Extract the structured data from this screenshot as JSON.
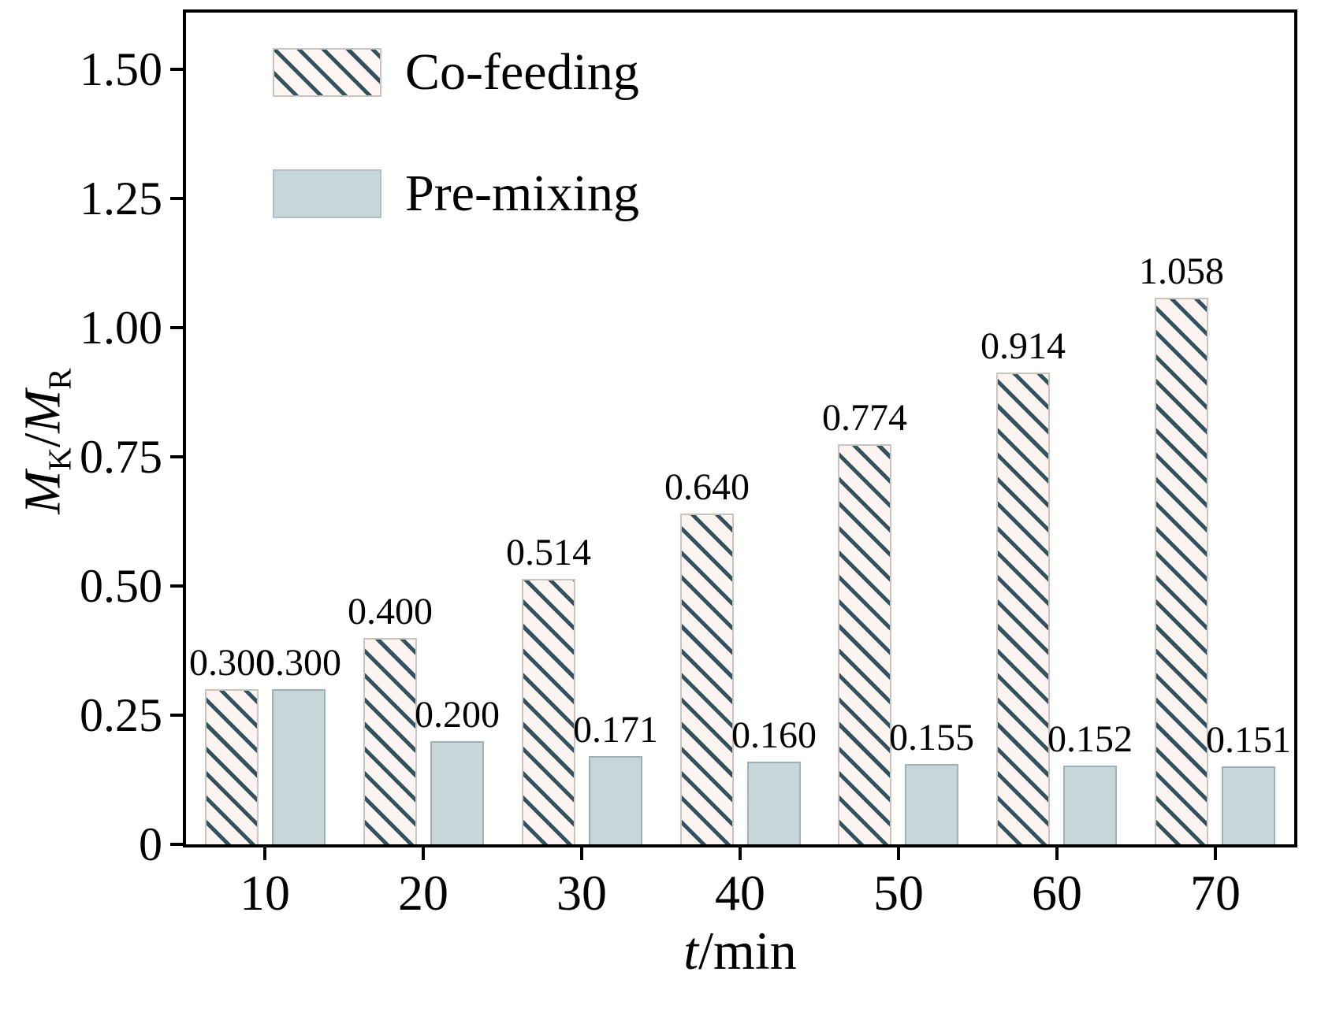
{
  "chart_data": {
    "type": "bar",
    "title": "",
    "categories": [
      "10",
      "20",
      "30",
      "40",
      "50",
      "60",
      "70"
    ],
    "series": [
      {
        "name": "Co-feeding",
        "style": "hatched",
        "values": [
          0.3,
          0.4,
          0.514,
          0.64,
          0.774,
          0.914,
          1.058
        ],
        "value_labels": [
          "0.300",
          "0.400",
          "0.514",
          "0.640",
          "0.774",
          "0.914",
          "1.058"
        ]
      },
      {
        "name": "Pre-mixing",
        "style": "solid",
        "values": [
          0.3,
          0.2,
          0.171,
          0.16,
          0.155,
          0.152,
          0.151
        ],
        "value_labels": [
          "0.300",
          "0.200",
          "0.171",
          "0.160",
          "0.155",
          "0.152",
          "0.151"
        ]
      }
    ],
    "xlabel": "t/min",
    "ylabel": "M_K/M_R",
    "ylabel_parts": {
      "m1": "M",
      "s1": "K",
      "sep": "/",
      "m2": "M",
      "s2": "R"
    },
    "xlabel_parts": {
      "var": "t",
      "unit": "/min"
    },
    "ylim": [
      0,
      1.61
    ],
    "y_ticks": [
      0,
      0.25,
      0.5,
      0.75,
      1.0,
      1.25,
      1.5
    ],
    "y_tick_labels": [
      "0",
      "0.25",
      "0.50",
      "0.75",
      "1.00",
      "1.25",
      "1.50"
    ],
    "grid": false,
    "legend_position": "top-left",
    "colors": {
      "hatch_line": "#33515f",
      "hatch_bg": "#fcf4f1",
      "solid_fill": "#c7d6d9",
      "solid_border": "#9eb2b6",
      "axis": "#000000"
    }
  }
}
